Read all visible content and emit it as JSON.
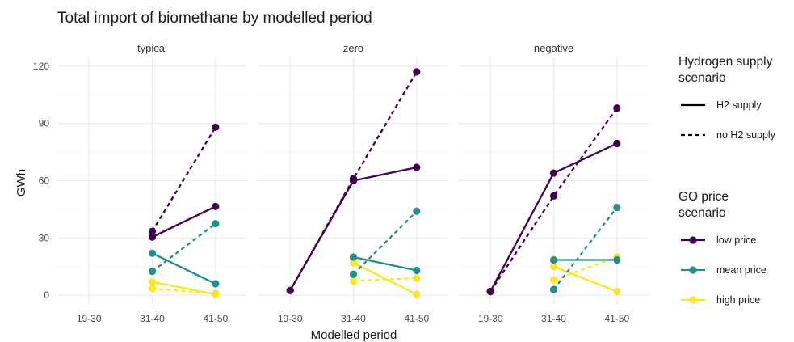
{
  "chart_data": {
    "type": "line",
    "title": "Total import of biomethane by modelled period",
    "xlabel": "Modelled period",
    "ylabel": "GWh",
    "ylim": [
      -5,
      125
    ],
    "yticks": [
      0,
      30,
      60,
      90,
      120
    ],
    "categories": [
      "19-30",
      "31-40",
      "41-50"
    ],
    "grid": true,
    "legend_position": "right",
    "panels": [
      {
        "label": "typical",
        "series": [
          {
            "name": "low price / H2 supply",
            "go_price": "low price",
            "h2": "H2 supply",
            "values": [
              null,
              30.5,
              46.5
            ]
          },
          {
            "name": "low price / no H2 supply",
            "go_price": "low price",
            "h2": "no H2 supply",
            "values": [
              null,
              33.5,
              88
            ]
          },
          {
            "name": "mean price / H2 supply",
            "go_price": "mean price",
            "h2": "H2 supply",
            "values": [
              null,
              22,
              6
            ]
          },
          {
            "name": "mean price / no H2 supply",
            "go_price": "mean price",
            "h2": "no H2 supply",
            "values": [
              null,
              12.5,
              37.5
            ]
          },
          {
            "name": "high price / H2 supply",
            "go_price": "high price",
            "h2": "H2 supply",
            "values": [
              null,
              7,
              0.5
            ]
          },
          {
            "name": "high price / no H2 supply",
            "go_price": "high price",
            "h2": "no H2 supply",
            "values": [
              null,
              3.5,
              1
            ]
          }
        ]
      },
      {
        "label": "zero",
        "series": [
          {
            "name": "low price / H2 supply",
            "go_price": "low price",
            "h2": "H2 supply",
            "values": [
              2.5,
              60,
              67
            ]
          },
          {
            "name": "low price / no H2 supply",
            "go_price": "low price",
            "h2": "no H2 supply",
            "values": [
              2.5,
              61,
              117
            ]
          },
          {
            "name": "mean price / H2 supply",
            "go_price": "mean price",
            "h2": "H2 supply",
            "values": [
              null,
              20,
              13
            ]
          },
          {
            "name": "mean price / no H2 supply",
            "go_price": "mean price",
            "h2": "no H2 supply",
            "values": [
              null,
              11,
              44
            ]
          },
          {
            "name": "high price / H2 supply",
            "go_price": "high price",
            "h2": "H2 supply",
            "values": [
              null,
              17,
              0.5
            ]
          },
          {
            "name": "high price / no H2 supply",
            "go_price": "high price",
            "h2": "no H2 supply",
            "values": [
              null,
              7.5,
              9
            ]
          }
        ]
      },
      {
        "label": "negative",
        "series": [
          {
            "name": "low price / H2 supply",
            "go_price": "low price",
            "h2": "H2 supply",
            "values": [
              2,
              64,
              79.5
            ]
          },
          {
            "name": "low price / no H2 supply",
            "go_price": "low price",
            "h2": "no H2 supply",
            "values": [
              2,
              52,
              98
            ]
          },
          {
            "name": "mean price / H2 supply",
            "go_price": "mean price",
            "h2": "H2 supply",
            "values": [
              null,
              18.5,
              18.5
            ]
          },
          {
            "name": "mean price / no H2 supply",
            "go_price": "mean price",
            "h2": "no H2 supply",
            "values": [
              null,
              3,
              46
            ]
          },
          {
            "name": "high price / H2 supply",
            "go_price": "high price",
            "h2": "H2 supply",
            "values": [
              null,
              15,
              2
            ]
          },
          {
            "name": "high price / no H2 supply",
            "go_price": "high price",
            "h2": "no H2 supply",
            "values": [
              null,
              8,
              20
            ]
          }
        ]
      }
    ],
    "legend": {
      "linetype": {
        "title": [
          "Hydrogen supply",
          "scenario"
        ],
        "items": [
          {
            "label": "H2 supply",
            "dash": "solid"
          },
          {
            "label": "no H2 supply",
            "dash": "dashed"
          }
        ]
      },
      "color": {
        "title": [
          "GO price",
          "scenario"
        ],
        "items": [
          {
            "label": "low price",
            "color": "#440154"
          },
          {
            "label": "mean price",
            "color": "#21908C"
          },
          {
            "label": "high price",
            "color": "#FDE725"
          }
        ]
      }
    }
  }
}
